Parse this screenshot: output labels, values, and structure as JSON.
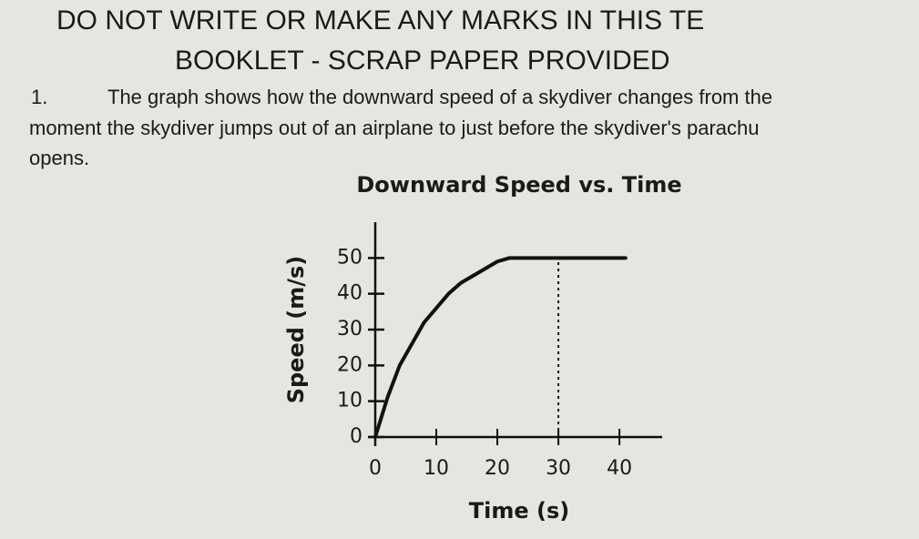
{
  "header": {
    "line1": "DO NOT WRITE OR MAKE ANY MARKS IN THIS TE",
    "line2": "BOOKLET - SCRAP PAPER PROVIDED"
  },
  "question": {
    "number": "1.",
    "lines": [
      "The graph shows how the downward speed of a skydiver changes from the",
      "moment the skydiver jumps out of an airplane to just before the skydiver's parachu",
      "opens."
    ]
  },
  "chart_data": {
    "type": "line",
    "title": "Downward Speed vs. Time",
    "x_label": "Time (s)",
    "y_label": "Speed (m/s)",
    "x": [
      0,
      2,
      4,
      6,
      8,
      10,
      12,
      14,
      16,
      18,
      20,
      22,
      26,
      30,
      34,
      38,
      41
    ],
    "series": [
      {
        "color": "#111111",
        "values": [
          0,
          11,
          20,
          26,
          32,
          36,
          40,
          43,
          45,
          47,
          49,
          50,
          50,
          50,
          50,
          50,
          50
        ]
      }
    ],
    "vlines": [
      30
    ],
    "xlim": [
      0,
      47
    ],
    "ylim": [
      0,
      60
    ],
    "xticks": [
      0,
      10,
      20,
      30,
      40
    ],
    "yticks": [
      0,
      10,
      20,
      30,
      40,
      50
    ]
  }
}
